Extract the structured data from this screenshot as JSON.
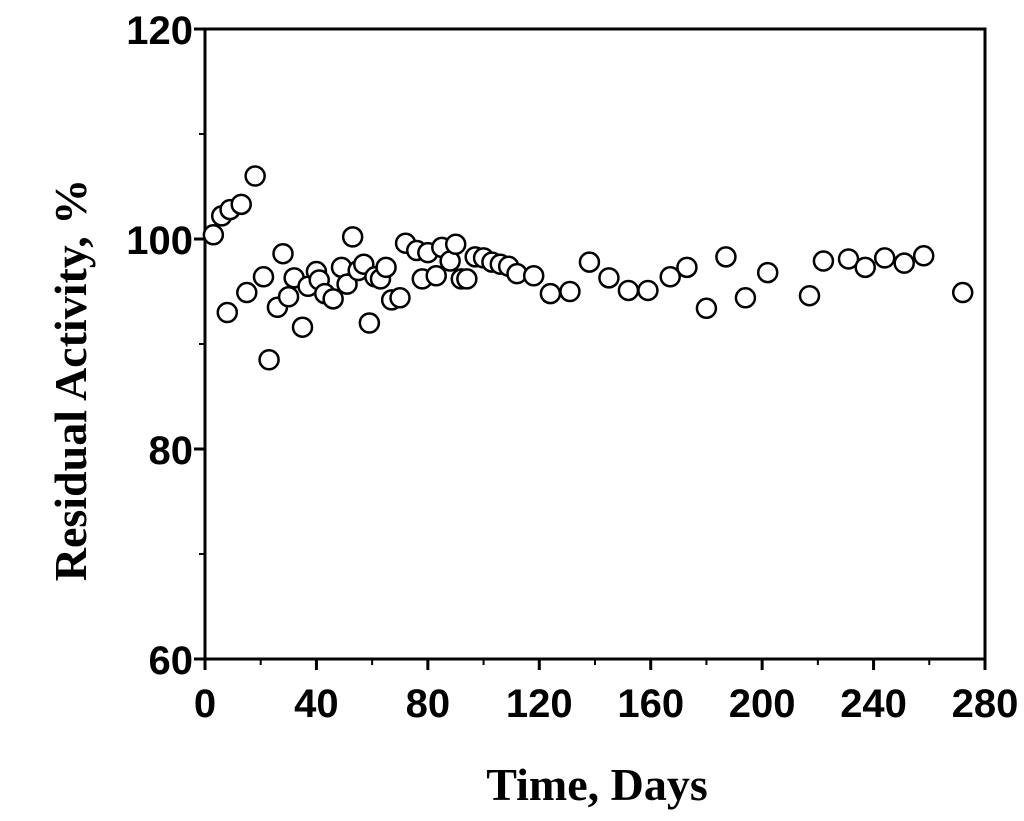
{
  "chart_data": {
    "type": "scatter",
    "title": "",
    "xlabel": "Time, Days",
    "ylabel": "Residual Activity, %",
    "xlim": [
      0,
      280
    ],
    "ylim": [
      60,
      120
    ],
    "xticks": [
      0,
      40,
      80,
      120,
      160,
      200,
      240,
      280
    ],
    "yticks": [
      60,
      80,
      100,
      120
    ],
    "xtick_labels": [
      "0",
      "40",
      "80",
      "120",
      "160",
      "200",
      "240",
      "280"
    ],
    "ytick_labels": [
      "60",
      "80",
      "100",
      "120"
    ],
    "grid": false,
    "marker": "open-circle",
    "colors": {
      "marker_stroke": "#000000",
      "marker_fill": "#ffffff",
      "axis": "#000000"
    },
    "series": [
      {
        "name": "Residual Activity",
        "points": [
          [
            3,
            100.4
          ],
          [
            6,
            102.2
          ],
          [
            9,
            102.8
          ],
          [
            13,
            103.3
          ],
          [
            18,
            106.0
          ],
          [
            8,
            93.0
          ],
          [
            15,
            94.9
          ],
          [
            21,
            96.4
          ],
          [
            23,
            88.5
          ],
          [
            26,
            93.5
          ],
          [
            28,
            98.6
          ],
          [
            30,
            94.5
          ],
          [
            32,
            96.3
          ],
          [
            35,
            91.6
          ],
          [
            37,
            95.5
          ],
          [
            40,
            96.9
          ],
          [
            41,
            96.1
          ],
          [
            43,
            94.8
          ],
          [
            46,
            94.3
          ],
          [
            49,
            97.3
          ],
          [
            51,
            95.7
          ],
          [
            53,
            100.2
          ],
          [
            55,
            97.0
          ],
          [
            57,
            97.6
          ],
          [
            59,
            92.0
          ],
          [
            61,
            96.4
          ],
          [
            63,
            96.2
          ],
          [
            65,
            97.3
          ],
          [
            67,
            94.2
          ],
          [
            70,
            94.4
          ],
          [
            72,
            99.6
          ],
          [
            76,
            98.9
          ],
          [
            78,
            96.2
          ],
          [
            80,
            98.7
          ],
          [
            83,
            96.5
          ],
          [
            85,
            99.2
          ],
          [
            88,
            97.9
          ],
          [
            90,
            99.5
          ],
          [
            92,
            96.2
          ],
          [
            94,
            96.2
          ],
          [
            97,
            98.3
          ],
          [
            100,
            98.2
          ],
          [
            103,
            97.8
          ],
          [
            106,
            97.6
          ],
          [
            109,
            97.4
          ],
          [
            112,
            96.7
          ],
          [
            118,
            96.5
          ],
          [
            124,
            94.8
          ],
          [
            131,
            95.0
          ],
          [
            138,
            97.8
          ],
          [
            145,
            96.3
          ],
          [
            152,
            95.1
          ],
          [
            159,
            95.1
          ],
          [
            167,
            96.4
          ],
          [
            173,
            97.3
          ],
          [
            180,
            93.4
          ],
          [
            187,
            98.3
          ],
          [
            194,
            94.4
          ],
          [
            202,
            96.8
          ],
          [
            217,
            94.6
          ],
          [
            222,
            97.9
          ],
          [
            231,
            98.1
          ],
          [
            237,
            97.3
          ],
          [
            244,
            98.2
          ],
          [
            251,
            97.7
          ],
          [
            258,
            98.4
          ],
          [
            272,
            94.9
          ]
        ]
      }
    ]
  }
}
